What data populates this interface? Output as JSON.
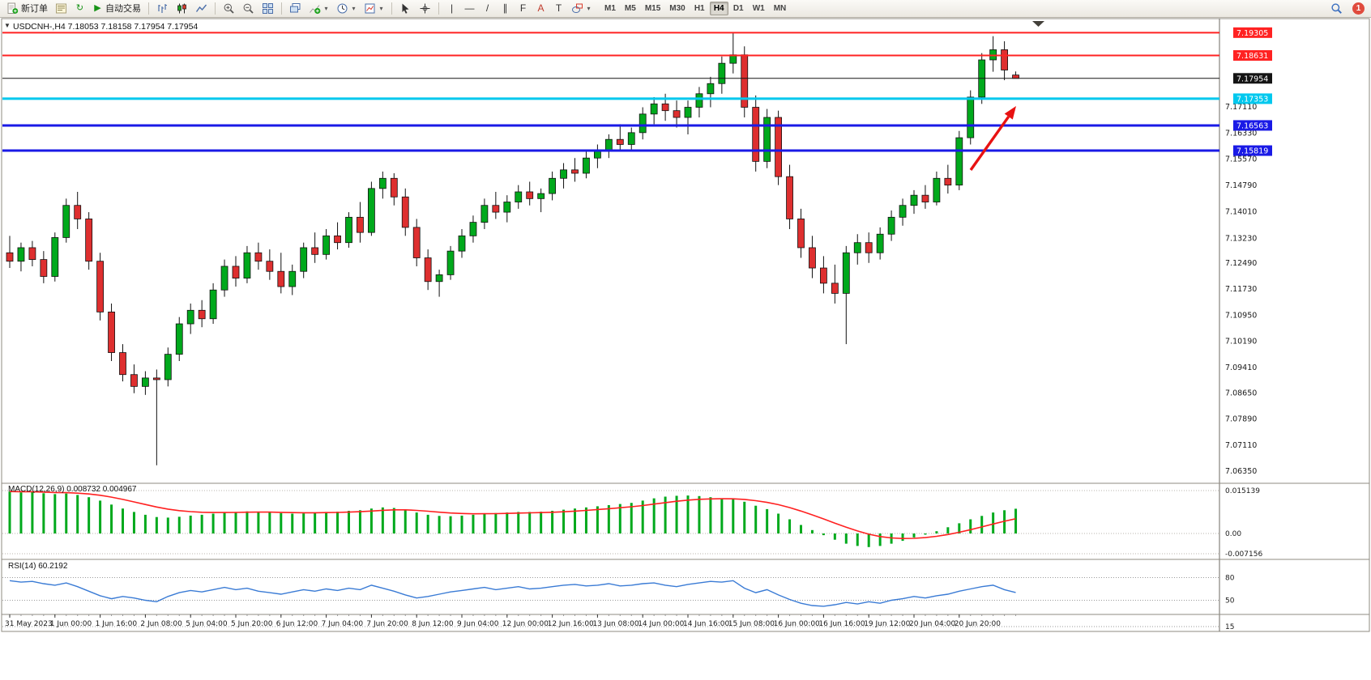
{
  "toolbar": {
    "new_order_label": "新订单",
    "algo_trading_label": "自动交易",
    "timeframes": [
      "M1",
      "M5",
      "M15",
      "M30",
      "H1",
      "H4",
      "D1",
      "W1",
      "MN"
    ],
    "active_timeframe": "H4",
    "notification_count": "1"
  },
  "icons": {
    "refresh-icon": "↻",
    "play-icon": "▶",
    "crosshair-icon": "+",
    "vertical-line-icon": "|",
    "horizontal-line-icon": "—",
    "trendline-icon": "/",
    "channel-icon": "∥",
    "fibonacci-icon": "F",
    "text-icon": "A",
    "label-icon": "T",
    "dropdown-icon": "▾",
    "collapse-icon": "▼",
    "plus-icon": "+",
    "minus-icon": "−"
  },
  "chart": {
    "symbol_title": "USDCNH-,H4 7.18053 7.18158 7.17954 7.17954"
  },
  "indicators": {
    "macd_label": "MACD(12,26,9) 0.008732 0.004967",
    "rsi_label": "RSI(14) 60.2192"
  },
  "chart_data": {
    "type": "candlestick",
    "symbol": "USDCNH-",
    "timeframe": "H4",
    "ohlc_current": {
      "open": 7.18053,
      "high": 7.18158,
      "low": 7.17954,
      "close": 7.17954
    },
    "colors": {
      "up": "#00a91c",
      "down": "#de2f2f",
      "outline": "#111111",
      "macd_hist": "#00a91c",
      "macd_signal": "#ff2020",
      "rsi_line": "#3a7bd5",
      "arrow": "#e81212"
    },
    "price_axis_ticks": [
      "7.17110",
      "7.16330",
      "7.15570",
      "7.14790",
      "7.14010",
      "7.13230",
      "7.12490",
      "7.11730",
      "7.10950",
      "7.10190",
      "7.09410",
      "7.08650",
      "7.07890",
      "7.07110",
      "7.06350"
    ],
    "time_axis_ticks": [
      "31 May 2023",
      "1 Jun 00:00",
      "1 Jun 16:00",
      "2 Jun 08:00",
      "5 Jun 04:00",
      "5 Jun 20:00",
      "6 Jun 12:00",
      "7 Jun 04:00",
      "7 Jun 20:00",
      "8 Jun 12:00",
      "9 Jun 04:00",
      "12 Jun 00:00",
      "12 Jun 16:00",
      "13 Jun 08:00",
      "14 Jun 00:00",
      "14 Jun 16:00",
      "15 Jun 08:00",
      "16 Jun 00:00",
      "16 Jun 16:00",
      "19 Jun 12:00",
      "20 Jun 04:00",
      "20 Jun 20:00"
    ],
    "hlines": [
      {
        "price": 7.19305,
        "label": "7.19305",
        "color": "#ff2222",
        "width": 2
      },
      {
        "price": 7.18631,
        "label": "7.18631",
        "color": "#ff2222",
        "width": 2
      },
      {
        "price": 7.17954,
        "label": "7.17954",
        "color": "#141414",
        "width": 1
      },
      {
        "price": 7.17353,
        "label": "7.17353",
        "color": "#00c8ee",
        "width": 3
      },
      {
        "price": 7.16563,
        "label": "7.16563",
        "color": "#1a1ae6",
        "width": 3
      },
      {
        "price": 7.15819,
        "label": "7.15819",
        "color": "#1a1ae6",
        "width": 3
      }
    ],
    "candles": [
      [
        7.128,
        7.133,
        7.1235,
        7.1255
      ],
      [
        7.1255,
        7.131,
        7.1225,
        7.1295
      ],
      [
        7.1295,
        7.1315,
        7.124,
        7.126
      ],
      [
        7.126,
        7.1285,
        7.119,
        7.121
      ],
      [
        7.121,
        7.134,
        7.1195,
        7.1325
      ],
      [
        7.1325,
        7.144,
        7.131,
        7.142
      ],
      [
        7.142,
        7.146,
        7.135,
        7.138
      ],
      [
        7.138,
        7.14,
        7.123,
        7.1255
      ],
      [
        7.1255,
        7.128,
        7.108,
        7.1105
      ],
      [
        7.1105,
        7.113,
        7.096,
        7.0985
      ],
      [
        7.0985,
        7.101,
        7.09,
        7.092
      ],
      [
        7.092,
        7.095,
        7.0865,
        7.0885
      ],
      [
        7.0885,
        7.093,
        7.086,
        7.091
      ],
      [
        7.091,
        7.0935,
        7.0652,
        7.0905
      ],
      [
        7.0905,
        7.1,
        7.0885,
        7.098
      ],
      [
        7.098,
        7.109,
        7.096,
        7.107
      ],
      [
        7.107,
        7.113,
        7.104,
        7.111
      ],
      [
        7.111,
        7.114,
        7.106,
        7.1085
      ],
      [
        7.1085,
        7.119,
        7.107,
        7.117
      ],
      [
        7.117,
        7.126,
        7.115,
        7.124
      ],
      [
        7.124,
        7.127,
        7.118,
        7.1205
      ],
      [
        7.1205,
        7.13,
        7.119,
        7.128
      ],
      [
        7.128,
        7.131,
        7.123,
        7.1255
      ],
      [
        7.1255,
        7.129,
        7.12,
        7.1225
      ],
      [
        7.1225,
        7.128,
        7.116,
        7.118
      ],
      [
        7.118,
        7.1245,
        7.1155,
        7.1225
      ],
      [
        7.1225,
        7.131,
        7.1205,
        7.1295
      ],
      [
        7.1295,
        7.134,
        7.125,
        7.1275
      ],
      [
        7.1275,
        7.135,
        7.126,
        7.133
      ],
      [
        7.133,
        7.137,
        7.129,
        7.131
      ],
      [
        7.131,
        7.14,
        7.1295,
        7.1385
      ],
      [
        7.1385,
        7.143,
        7.131,
        7.134
      ],
      [
        7.134,
        7.149,
        7.133,
        7.147
      ],
      [
        7.147,
        7.152,
        7.144,
        7.15
      ],
      [
        7.15,
        7.1515,
        7.142,
        7.1445
      ],
      [
        7.1445,
        7.147,
        7.133,
        7.1355
      ],
      [
        7.1355,
        7.138,
        7.124,
        7.1265
      ],
      [
        7.1265,
        7.129,
        7.117,
        7.1195
      ],
      [
        7.1195,
        7.123,
        7.115,
        7.1215
      ],
      [
        7.1215,
        7.13,
        7.12,
        7.1285
      ],
      [
        7.1285,
        7.135,
        7.1265,
        7.133
      ],
      [
        7.133,
        7.139,
        7.131,
        7.137
      ],
      [
        7.137,
        7.144,
        7.135,
        7.142
      ],
      [
        7.142,
        7.146,
        7.138,
        7.14
      ],
      [
        7.14,
        7.145,
        7.137,
        7.143
      ],
      [
        7.143,
        7.148,
        7.141,
        7.146
      ],
      [
        7.146,
        7.149,
        7.142,
        7.144
      ],
      [
        7.144,
        7.147,
        7.14,
        7.1455
      ],
      [
        7.1455,
        7.152,
        7.1435,
        7.15
      ],
      [
        7.15,
        7.1545,
        7.147,
        7.1525
      ],
      [
        7.1525,
        7.156,
        7.149,
        7.1515
      ],
      [
        7.1515,
        7.158,
        7.15,
        7.156
      ],
      [
        7.156,
        7.16,
        7.153,
        7.158
      ],
      [
        7.158,
        7.163,
        7.156,
        7.1615
      ],
      [
        7.1615,
        7.166,
        7.158,
        7.16
      ],
      [
        7.16,
        7.165,
        7.158,
        7.1635
      ],
      [
        7.1635,
        7.171,
        7.1615,
        7.169
      ],
      [
        7.169,
        7.174,
        7.166,
        7.172
      ],
      [
        7.172,
        7.175,
        7.167,
        7.17
      ],
      [
        7.17,
        7.173,
        7.165,
        7.168
      ],
      [
        7.168,
        7.173,
        7.163,
        7.171
      ],
      [
        7.171,
        7.177,
        7.168,
        7.175
      ],
      [
        7.175,
        7.18,
        7.171,
        7.178
      ],
      [
        7.178,
        7.186,
        7.175,
        7.184
      ],
      [
        7.184,
        7.193,
        7.181,
        7.1865
      ],
      [
        7.1865,
        7.189,
        7.168,
        7.171
      ],
      [
        7.171,
        7.1745,
        7.152,
        7.155
      ],
      [
        7.155,
        7.1705,
        7.153,
        7.168
      ],
      [
        7.168,
        7.17,
        7.148,
        7.1505
      ],
      [
        7.1505,
        7.154,
        7.135,
        7.138
      ],
      [
        7.138,
        7.141,
        7.1265,
        7.1295
      ],
      [
        7.1295,
        7.133,
        7.1205,
        7.1235
      ],
      [
        7.1235,
        7.127,
        7.116,
        7.119
      ],
      [
        7.119,
        7.1245,
        7.113,
        7.116
      ],
      [
        7.116,
        7.13,
        7.101,
        7.128
      ],
      [
        7.128,
        7.1335,
        7.1245,
        7.131
      ],
      [
        7.131,
        7.134,
        7.125,
        7.128
      ],
      [
        7.128,
        7.1355,
        7.126,
        7.1335
      ],
      [
        7.1335,
        7.1405,
        7.1315,
        7.1385
      ],
      [
        7.1385,
        7.144,
        7.136,
        7.142
      ],
      [
        7.142,
        7.1465,
        7.1395,
        7.145
      ],
      [
        7.145,
        7.148,
        7.141,
        7.143
      ],
      [
        7.143,
        7.152,
        7.142,
        7.15
      ],
      [
        7.15,
        7.154,
        7.1455,
        7.148
      ],
      [
        7.148,
        7.164,
        7.1465,
        7.162
      ],
      [
        7.162,
        7.176,
        7.16,
        7.174
      ],
      [
        7.174,
        7.187,
        7.172,
        7.185
      ],
      [
        7.185,
        7.192,
        7.1815,
        7.188
      ],
      [
        7.188,
        7.1905,
        7.179,
        7.182
      ],
      [
        7.18053,
        7.18158,
        7.17954,
        7.17954
      ]
    ],
    "macd": {
      "name": "MACD(12,26,9)",
      "main_value": 0.008732,
      "signal_value": 0.004967,
      "signal_period": 9,
      "axis_ticks": [
        "0.015139",
        "0.00",
        "-0.007156"
      ],
      "values": [
        0.0148,
        0.0145,
        0.0146,
        0.0142,
        0.0139,
        0.0141,
        0.0136,
        0.0128,
        0.0116,
        0.0102,
        0.0088,
        0.0076,
        0.0066,
        0.0058,
        0.0056,
        0.0059,
        0.0063,
        0.0066,
        0.007,
        0.0074,
        0.0076,
        0.0078,
        0.0077,
        0.0075,
        0.0072,
        0.007,
        0.0071,
        0.0073,
        0.0076,
        0.0077,
        0.008,
        0.0082,
        0.0088,
        0.0092,
        0.009,
        0.0084,
        0.0074,
        0.0066,
        0.0062,
        0.0061,
        0.0063,
        0.0066,
        0.007,
        0.0072,
        0.0074,
        0.0076,
        0.0076,
        0.0077,
        0.008,
        0.0084,
        0.0088,
        0.0092,
        0.0096,
        0.01,
        0.0104,
        0.0108,
        0.0116,
        0.0124,
        0.013,
        0.0133,
        0.0134,
        0.0132,
        0.0128,
        0.0124,
        0.0121,
        0.0112,
        0.0098,
        0.0086,
        0.007,
        0.005,
        0.003,
        0.0012,
        -0.0006,
        -0.0022,
        -0.0036,
        -0.0044,
        -0.0048,
        -0.0044,
        -0.0036,
        -0.0026,
        -0.0014,
        -0.0004,
        0.0008,
        0.0022,
        0.0036,
        0.005,
        0.0062,
        0.0074,
        0.0082,
        0.008732
      ]
    },
    "rsi": {
      "name": "RSI(14)",
      "current": 60.2192,
      "axis_ticks": [
        "80",
        "50",
        "15"
      ],
      "values": [
        76,
        74,
        75,
        72,
        70,
        73,
        68,
        62,
        56,
        52,
        55,
        53,
        50,
        48,
        55,
        60,
        63,
        61,
        64,
        67,
        64,
        66,
        62,
        60,
        58,
        61,
        64,
        62,
        65,
        63,
        66,
        64,
        70,
        66,
        62,
        57,
        53,
        55,
        58,
        61,
        63,
        65,
        67,
        64,
        66,
        68,
        65,
        66,
        68,
        70,
        71,
        69,
        70,
        72,
        69,
        70,
        72,
        73,
        70,
        68,
        71,
        73,
        75,
        74,
        76,
        66,
        60,
        64,
        57,
        51,
        46,
        43,
        42,
        44,
        47,
        45,
        48,
        46,
        50,
        52,
        55,
        53,
        56,
        58,
        62,
        65,
        68,
        70,
        64,
        60.2192
      ]
    },
    "arrow": {
      "from": [
        1198,
        210
      ],
      "to": [
        1254,
        131
      ]
    }
  }
}
